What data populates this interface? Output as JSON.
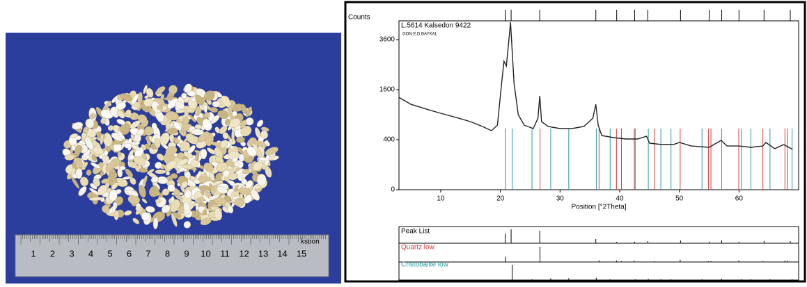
{
  "photo": {
    "ruler_labels": [
      "1",
      "2",
      "3",
      "4",
      "5",
      "6",
      "7",
      "8",
      "9",
      "10",
      "11",
      "12",
      "13",
      "14",
      "15"
    ],
    "brand": "ksoon"
  },
  "chart_data": {
    "type": "line",
    "title": "L.5614  Kalsedon 9422",
    "subtitle": "GON E.D.BAYKAL",
    "y_label": "Counts",
    "x_label": "Position [°2Theta]",
    "yscale": "sqrt",
    "xlim": [
      3,
      70
    ],
    "ylim": [
      0,
      4560
    ],
    "xticks": [
      10,
      20,
      30,
      40,
      50,
      60
    ],
    "yticks": [
      0,
      400,
      1600,
      3600
    ],
    "series": [
      {
        "name": "L.5614  Kalsedon 9422",
        "color": "#222222",
        "x": [
          3,
          5,
          8,
          10,
          13,
          15,
          17,
          18.5,
          19.5,
          20.2,
          20.6,
          21.0,
          21.4,
          21.7,
          22.3,
          23,
          24,
          25.5,
          26.3,
          26.6,
          26.9,
          28,
          30,
          32,
          34,
          35.5,
          36,
          36.4,
          37,
          39,
          41,
          43,
          44.5,
          45,
          47,
          49,
          50,
          52,
          55,
          57,
          58,
          60,
          62,
          64,
          64.5,
          66,
          67.5,
          69
        ],
        "values": [
          1364,
          1167,
          1020,
          934,
          818,
          740,
          639,
          557,
          666,
          1806,
          2641,
          2444,
          3500,
          4480,
          1806,
          900,
          666,
          598,
          818,
          1406,
          740,
          639,
          598,
          598,
          639,
          818,
          1167,
          666,
          469,
          434,
          411,
          411,
          457,
          347,
          326,
          326,
          357,
          306,
          287,
          389,
          306,
          306,
          287,
          306,
          357,
          270,
          326,
          260
        ]
      }
    ],
    "peak_list": {
      "name": "Peak List",
      "color": "#000000",
      "positions": [
        20.8,
        21.8,
        26.6,
        36.0,
        39.5,
        42.5,
        44.7,
        50.2,
        55.0,
        57.1,
        60.0,
        64.2,
        68.6
      ],
      "intensities": [
        70,
        100,
        90,
        30,
        10,
        10,
        15,
        20,
        10,
        20,
        10,
        15,
        15
      ]
    },
    "references": [
      {
        "name": "Quartz low",
        "color": "#d04040",
        "positions": [
          20.85,
          26.64,
          36.54,
          39.46,
          40.29,
          42.45,
          45.79,
          50.14,
          54.87,
          55.3,
          59.96,
          64.0,
          67.7,
          68.1
        ],
        "intensities": [
          35,
          100,
          10,
          10,
          5,
          8,
          5,
          15,
          5,
          5,
          10,
          5,
          8,
          8
        ]
      },
      {
        "name": "Cristobalite low",
        "color": "#2a9aa0",
        "positions": [
          21.98,
          25.3,
          28.44,
          31.46,
          36.08,
          38.4,
          42.6,
          44.8,
          46.9,
          48.6,
          53.8,
          57.1,
          60.4,
          62.0,
          65.2,
          68.9
        ],
        "intensities": [
          100,
          5,
          12,
          12,
          15,
          5,
          5,
          8,
          5,
          5,
          5,
          8,
          5,
          5,
          5,
          5
        ]
      }
    ]
  }
}
